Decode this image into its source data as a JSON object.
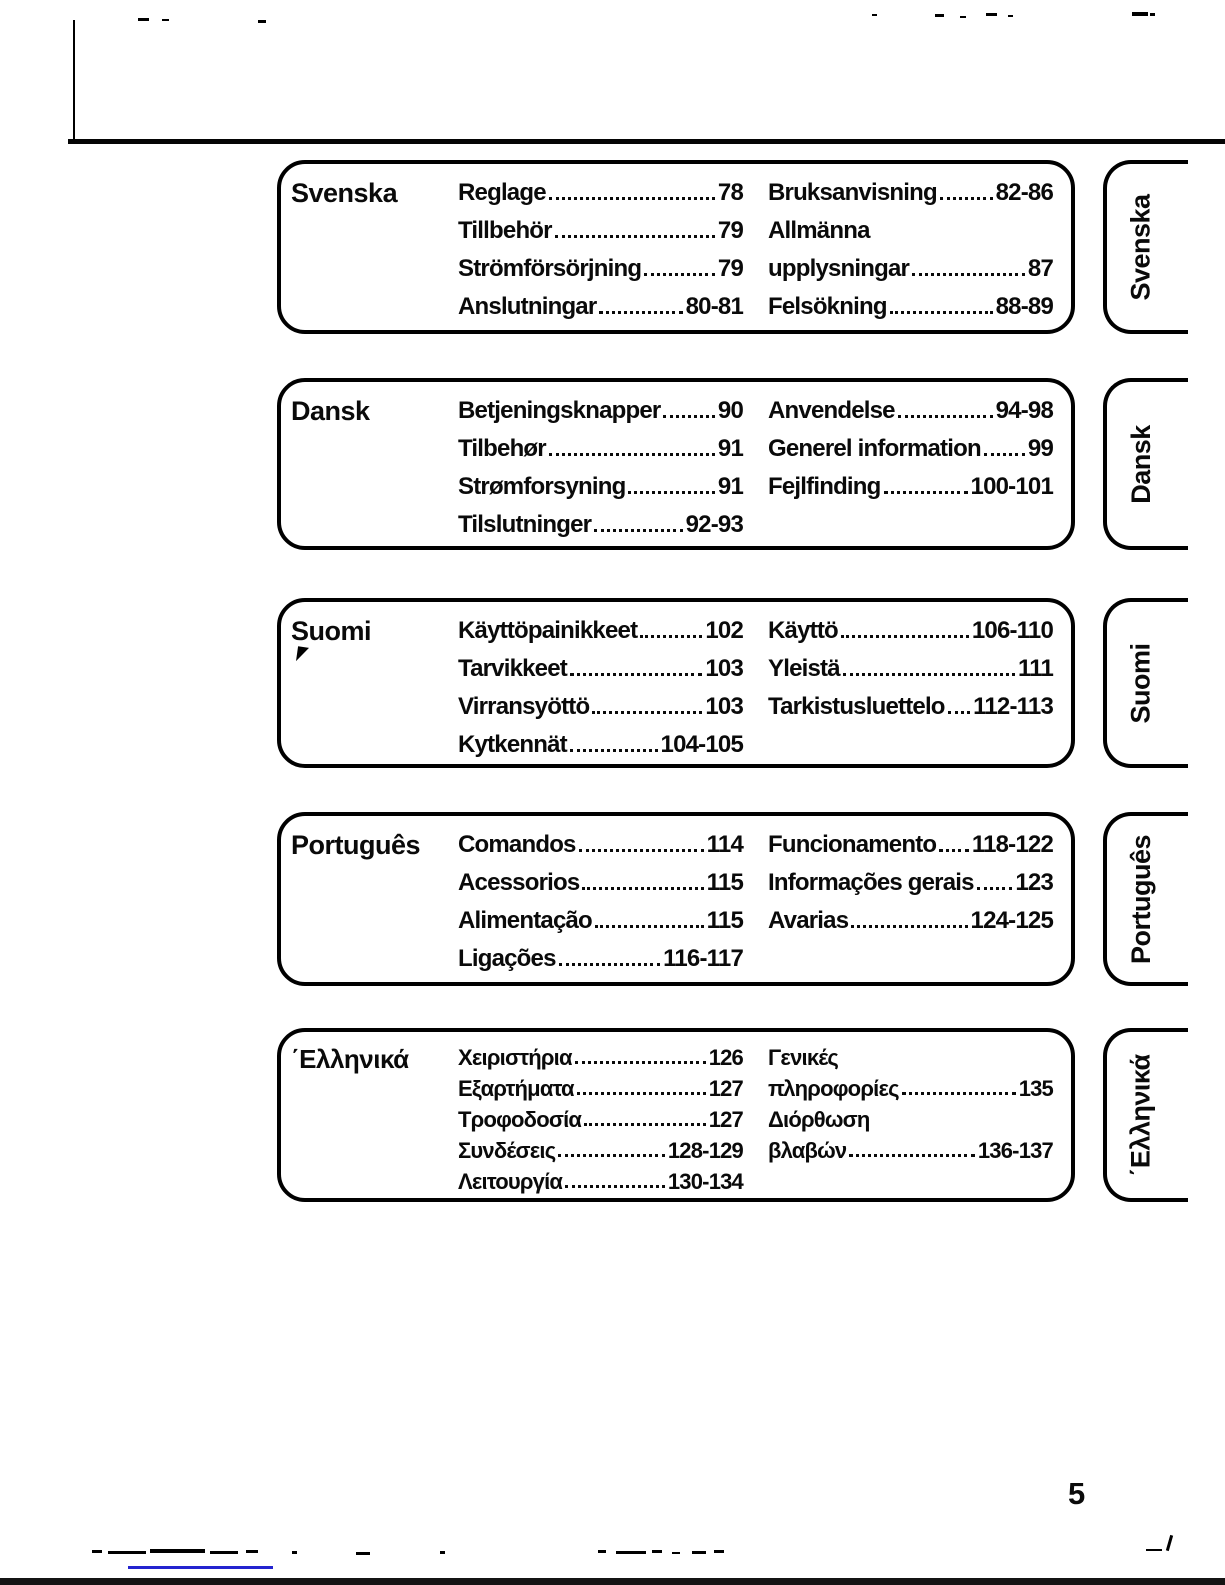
{
  "page_number": "5",
  "sections": [
    {
      "id": "svenska",
      "language": "Svenska",
      "tab_label": "Svenska",
      "col1": [
        {
          "label": "Reglage",
          "pages": "78"
        },
        {
          "label": "Tillbehör",
          "pages": "79"
        },
        {
          "label": "Strömförsörjning",
          "pages": "79"
        },
        {
          "label": "Anslutningar",
          "pages": "80-81"
        }
      ],
      "col2": [
        {
          "label": "Bruksanvisning",
          "pages": "82-86"
        },
        {
          "label": "Allmänna",
          "pages": ""
        },
        {
          "label": "upplysningar",
          "pages": "87"
        },
        {
          "label": "Felsökning",
          "pages": "88-89"
        }
      ]
    },
    {
      "id": "dansk",
      "language": "Dansk",
      "tab_label": "Dansk",
      "col1": [
        {
          "label": "Betjeningsknapper",
          "pages": "90"
        },
        {
          "label": "Tilbehør",
          "pages": "91"
        },
        {
          "label": "Strømforsyning",
          "pages": "91"
        },
        {
          "label": "Tilslutninger",
          "pages": "92-93"
        }
      ],
      "col2": [
        {
          "label": "Anvendelse",
          "pages": "94-98"
        },
        {
          "label": "Generel information",
          "pages": "99"
        },
        {
          "label": "Fejlfinding",
          "pages": "100-101"
        }
      ]
    },
    {
      "id": "suomi",
      "language": "Suomi",
      "tab_label": "Suomi",
      "col1": [
        {
          "label": "Käyttöpainikkeet",
          "pages": "102"
        },
        {
          "label": "Tarvikkeet",
          "pages": "103"
        },
        {
          "label": "Virransyöttö",
          "pages": "103"
        },
        {
          "label": "Kytkennät",
          "pages": "104-105"
        }
      ],
      "col2": [
        {
          "label": "Käyttö",
          "pages": "106-110"
        },
        {
          "label": "Yleistä",
          "pages": "111"
        },
        {
          "label": "Tarkistusluettelo",
          "pages": "112-113"
        }
      ]
    },
    {
      "id": "portugues",
      "language": "Português",
      "tab_label": "Português",
      "col1": [
        {
          "label": "Comandos",
          "pages": "114"
        },
        {
          "label": "Acessorios",
          "pages": "115"
        },
        {
          "label": "Alimentação",
          "pages": "115"
        },
        {
          "label": "Ligações",
          "pages": "116-117"
        }
      ],
      "col2": [
        {
          "label": "Funcionamento",
          "pages": "118-122"
        },
        {
          "label": "Informações gerais",
          "pages": "123"
        },
        {
          "label": "Avarias",
          "pages": "124-125"
        }
      ]
    },
    {
      "id": "ellinika",
      "language": "΄Ελληνικά",
      "tab_label": "΄Ελληνικά",
      "col1": [
        {
          "label": "Χειριστήρια",
          "pages": "126"
        },
        {
          "label": "Εξαρτήματα",
          "pages": "127"
        },
        {
          "label": "Τροφοδοσία",
          "pages": "127"
        },
        {
          "label": "Συνδέσεις",
          "pages": "128-129"
        },
        {
          "label": "Λειτουργία",
          "pages": "130-134"
        }
      ],
      "col2": [
        {
          "label": "Γενικές",
          "pages": ""
        },
        {
          "label": "πληροφορίες",
          "pages": "135"
        },
        {
          "label": "Διόρθωση",
          "pages": ""
        },
        {
          "label": "βλαβών",
          "pages": "136-137"
        }
      ]
    }
  ]
}
